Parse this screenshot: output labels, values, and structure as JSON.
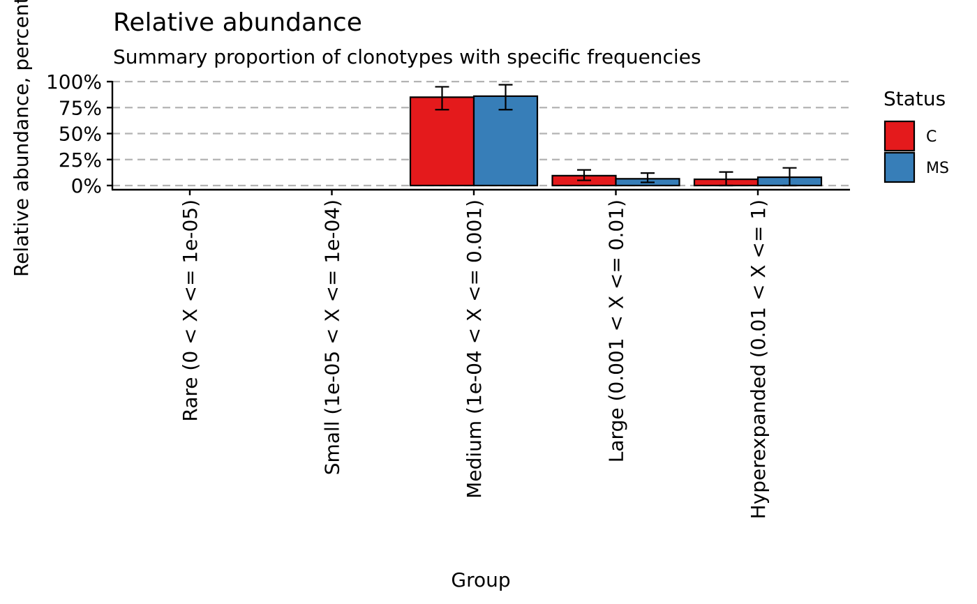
{
  "chart_data": {
    "type": "bar",
    "title": "Relative abundance",
    "subtitle": "Summary proportion of clonotypes with specific frequencies",
    "xlabel": "Group",
    "ylabel": "Relative abundance, percentage",
    "ylim": [
      0,
      1
    ],
    "yticks": [
      {
        "value": 0,
        "label": "0%"
      },
      {
        "value": 0.25,
        "label": "25%"
      },
      {
        "value": 0.5,
        "label": "50%"
      },
      {
        "value": 0.75,
        "label": "75%"
      },
      {
        "value": 1,
        "label": "100%"
      }
    ],
    "grid": "horizontal dashed",
    "categories": [
      "Rare (0 < X <= 1e-05)",
      "Small (1e-05 < X <= 1e-04)",
      "Medium (1e-04 < X <= 0.001)",
      "Large (0.001 < X <= 0.01)",
      "Hyperexpanded (0.01 < X <= 1)"
    ],
    "series": [
      {
        "name": "C",
        "color": "#E41A1C",
        "values": [
          0.0,
          0.0,
          0.85,
          0.095,
          0.06
        ],
        "error_low": [
          0.0,
          0.0,
          0.73,
          0.05,
          0.0
        ],
        "error_high": [
          0.0,
          0.0,
          0.95,
          0.15,
          0.13
        ]
      },
      {
        "name": "MS",
        "color": "#377EB8",
        "values": [
          0.0,
          0.0,
          0.86,
          0.065,
          0.08
        ],
        "error_low": [
          0.0,
          0.0,
          0.73,
          0.03,
          0.0
        ],
        "error_high": [
          0.0,
          0.0,
          0.97,
          0.12,
          0.17
        ]
      }
    ],
    "legend": {
      "title": "Status",
      "position": "right"
    }
  }
}
